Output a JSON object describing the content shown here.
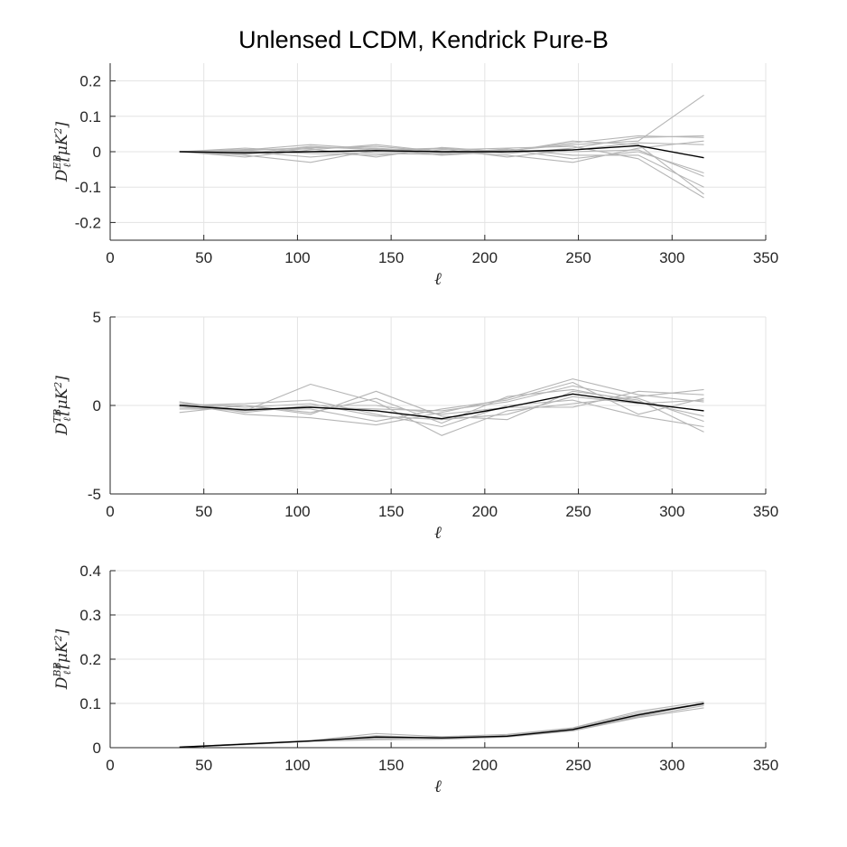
{
  "figure": {
    "title": "Unlensed LCDM, Kendrick Pure-B"
  },
  "colors": {
    "realization": "#b5b5b5",
    "mean": "#000000",
    "axis": "#262626",
    "grid": "#e3e3e3"
  },
  "chart_data": [
    {
      "type": "line",
      "id": "eb",
      "xlabel": "ℓ",
      "ylabel": {
        "base": "D",
        "sub": "ℓ",
        "sup": "EB",
        "unit_open": "[",
        "unit_mu": "μ",
        "unit_K": "K",
        "unit_sq": "2",
        "unit_close": "]"
      },
      "xlim": [
        0,
        350
      ],
      "ylim": [
        -0.25,
        0.25
      ],
      "xticks": [
        0,
        50,
        100,
        150,
        200,
        250,
        300,
        350
      ],
      "xtick_labels": [
        "0",
        "50",
        "100",
        "150",
        "200",
        "250",
        "300",
        "350"
      ],
      "yticks": [
        -0.2,
        -0.1,
        0,
        0.1,
        0.2
      ],
      "ytick_labels": [
        "-0.2",
        "-0.1",
        "0",
        "0.1",
        "0.2"
      ],
      "grid": true,
      "x": [
        37,
        72,
        107,
        142,
        177,
        212,
        247,
        282,
        317
      ],
      "series": [
        {
          "role": "realization",
          "values": [
            0.0,
            0.003,
            0.012,
            0.01,
            -0.002,
            0.003,
            0.02,
            0.03,
            0.16
          ]
        },
        {
          "role": "realization",
          "values": [
            0.0,
            -0.01,
            -0.03,
            0.005,
            0.01,
            -0.005,
            0.01,
            0.04,
            0.045
          ]
        },
        {
          "role": "realization",
          "values": [
            0.0,
            0.005,
            0.02,
            0.008,
            -0.01,
            0.0,
            0.03,
            0.02,
            -0.12
          ]
        },
        {
          "role": "realization",
          "values": [
            0.0,
            -0.008,
            0.01,
            0.015,
            0.0,
            -0.01,
            -0.03,
            0.01,
            0.03
          ]
        },
        {
          "role": "realization",
          "values": [
            0.0,
            0.002,
            -0.005,
            -0.01,
            0.005,
            0.01,
            0.015,
            -0.02,
            -0.13
          ]
        },
        {
          "role": "realization",
          "values": [
            0.0,
            -0.015,
            0.005,
            0.02,
            0.0,
            0.005,
            -0.02,
            0.0,
            -0.06
          ]
        },
        {
          "role": "realization",
          "values": [
            0.0,
            0.01,
            0.0,
            -0.005,
            -0.008,
            0.002,
            0.025,
            0.045,
            0.04
          ]
        },
        {
          "role": "realization",
          "values": [
            0.0,
            -0.005,
            0.015,
            0.005,
            0.008,
            -0.015,
            0.005,
            0.025,
            0.02
          ]
        },
        {
          "role": "realization",
          "values": [
            0.0,
            0.0,
            -0.015,
            0.0,
            -0.005,
            0.008,
            -0.01,
            -0.01,
            -0.1
          ]
        },
        {
          "role": "realization",
          "values": [
            0.0,
            0.006,
            0.008,
            -0.015,
            0.012,
            0.0,
            0.0,
            0.005,
            -0.07
          ]
        },
        {
          "role": "mean",
          "values": [
            0.0,
            -0.003,
            0.0,
            0.003,
            0.0,
            0.0,
            0.005,
            0.017,
            -0.017
          ]
        }
      ]
    },
    {
      "type": "line",
      "id": "tb",
      "xlabel": "ℓ",
      "ylabel": {
        "base": "D",
        "sub": "ℓ",
        "sup": "TB",
        "unit_open": "[",
        "unit_mu": "μ",
        "unit_K": "K",
        "unit_sq": "2",
        "unit_close": "]"
      },
      "xlim": [
        0,
        350
      ],
      "ylim": [
        -5,
        5
      ],
      "xticks": [
        0,
        50,
        100,
        150,
        200,
        250,
        300,
        350
      ],
      "xtick_labels": [
        "0",
        "50",
        "100",
        "150",
        "200",
        "250",
        "300",
        "350"
      ],
      "yticks": [
        -5,
        0,
        5
      ],
      "ytick_labels": [
        "-5",
        "0",
        "5"
      ],
      "grid": true,
      "x": [
        37,
        72,
        107,
        142,
        177,
        212,
        247,
        282,
        317
      ],
      "series": [
        {
          "role": "realization",
          "values": [
            0.2,
            -0.3,
            1.2,
            0.2,
            -1.7,
            -0.3,
            0.1,
            0.5,
            0.9
          ]
        },
        {
          "role": "realization",
          "values": [
            -0.4,
            0.0,
            -0.5,
            0.8,
            -0.6,
            -0.8,
            0.8,
            0.3,
            -1.5
          ]
        },
        {
          "role": "realization",
          "values": [
            0.1,
            -0.5,
            -0.7,
            -1.1,
            -0.4,
            0.4,
            1.5,
            0.6,
            0.2
          ]
        },
        {
          "role": "realization",
          "values": [
            0.0,
            0.1,
            0.3,
            -0.5,
            -1.2,
            0.0,
            0.3,
            -0.6,
            -1.2
          ]
        },
        {
          "role": "realization",
          "values": [
            -0.2,
            -0.2,
            -0.2,
            -0.9,
            -0.2,
            0.3,
            1.3,
            -0.5,
            0.4
          ]
        },
        {
          "role": "realization",
          "values": [
            0.2,
            -0.4,
            0.0,
            0.0,
            -0.5,
            -0.1,
            -0.1,
            0.8,
            0.6
          ]
        },
        {
          "role": "realization",
          "values": [
            0.0,
            0.0,
            -0.4,
            0.4,
            -1.0,
            0.5,
            0.9,
            0.2,
            -0.6
          ]
        },
        {
          "role": "realization",
          "values": [
            0.1,
            -0.1,
            0.1,
            -0.6,
            -0.8,
            -0.5,
            0.5,
            0.1,
            0.3
          ]
        },
        {
          "role": "realization",
          "values": [
            -0.1,
            -0.3,
            -0.1,
            -0.2,
            -0.3,
            0.2,
            1.1,
            0.4,
            -0.9
          ]
        },
        {
          "role": "mean",
          "values": [
            0.0,
            -0.25,
            -0.1,
            -0.3,
            -0.75,
            -0.1,
            0.65,
            0.15,
            -0.3
          ]
        }
      ]
    },
    {
      "type": "line",
      "id": "bb",
      "xlabel": "ℓ",
      "ylabel": {
        "base": "D",
        "sub": "ℓ",
        "sup": "BB",
        "unit_open": "[",
        "unit_mu": "μ",
        "unit_K": "K",
        "unit_sq": "2",
        "unit_close": "]"
      },
      "xlim": [
        0,
        350
      ],
      "ylim": [
        0,
        0.4
      ],
      "xticks": [
        0,
        50,
        100,
        150,
        200,
        250,
        300,
        350
      ],
      "xtick_labels": [
        "0",
        "50",
        "100",
        "150",
        "200",
        "250",
        "300",
        "350"
      ],
      "yticks": [
        0,
        0.1,
        0.2,
        0.3,
        0.4
      ],
      "ytick_labels": [
        "0",
        "0.1",
        "0.2",
        "0.3",
        "0.4"
      ],
      "grid": true,
      "x": [
        37,
        72,
        107,
        142,
        177,
        212,
        247,
        282,
        317
      ],
      "series": [
        {
          "role": "realization",
          "values": [
            0.001,
            0.009,
            0.016,
            0.032,
            0.025,
            0.03,
            0.045,
            0.082,
            0.104
          ]
        },
        {
          "role": "realization",
          "values": [
            0.001,
            0.007,
            0.014,
            0.018,
            0.019,
            0.024,
            0.038,
            0.068,
            0.09
          ]
        },
        {
          "role": "realization",
          "values": [
            0.002,
            0.008,
            0.015,
            0.027,
            0.022,
            0.027,
            0.042,
            0.075,
            0.098
          ]
        },
        {
          "role": "realization",
          "values": [
            0.001,
            0.008,
            0.016,
            0.022,
            0.024,
            0.026,
            0.04,
            0.072,
            0.101
          ]
        },
        {
          "role": "realization",
          "values": [
            0.001,
            0.009,
            0.015,
            0.025,
            0.02,
            0.028,
            0.044,
            0.078,
            0.1
          ]
        },
        {
          "role": "realization",
          "values": [
            0.002,
            0.007,
            0.014,
            0.02,
            0.023,
            0.025,
            0.039,
            0.07,
            0.095
          ]
        },
        {
          "role": "mean",
          "values": [
            0.001,
            0.008,
            0.015,
            0.024,
            0.022,
            0.026,
            0.041,
            0.074,
            0.1
          ]
        }
      ]
    }
  ]
}
